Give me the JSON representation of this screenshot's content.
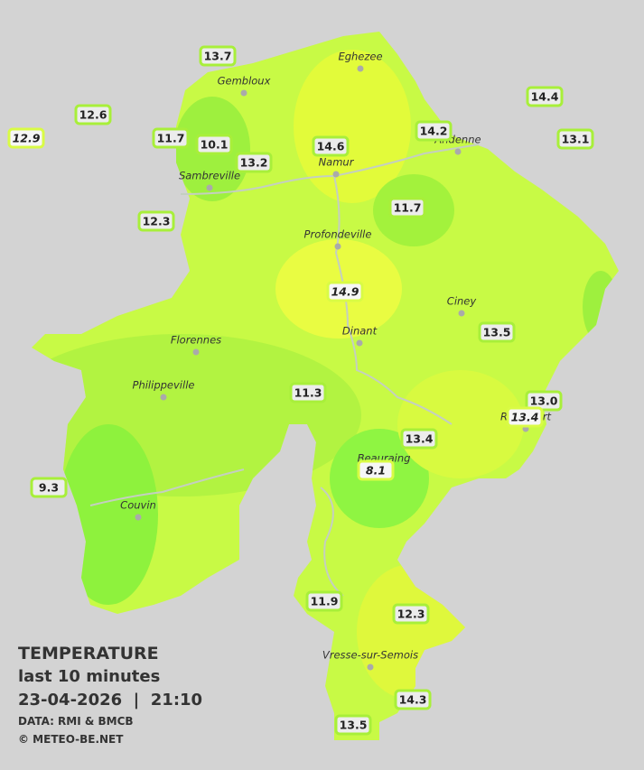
{
  "header": {
    "title": "TEMPERATURE",
    "subtitle": "last 10 minutes",
    "datetime": "23-04-2026  |  21:10",
    "source": "DATA: RMI & BMCB",
    "credit": "© METEO-BE.NET"
  },
  "cities": [
    {
      "name": "Eghezee"
    },
    {
      "name": "Gembloux"
    },
    {
      "name": "Andenne"
    },
    {
      "name": "Namur"
    },
    {
      "name": "Sambreville"
    },
    {
      "name": "Profondeville"
    },
    {
      "name": "Ciney"
    },
    {
      "name": "Dinant"
    },
    {
      "name": "Florennes"
    },
    {
      "name": "Philippeville"
    },
    {
      "name": "Beauraing"
    },
    {
      "name": "Rochefort"
    },
    {
      "name": "Couvin"
    },
    {
      "name": "Vresse-sur-Semois"
    }
  ],
  "stations": [
    {
      "label": "13.7"
    },
    {
      "label": "12.6"
    },
    {
      "label": "12.9"
    },
    {
      "label": "11.7"
    },
    {
      "label": "10.1"
    },
    {
      "label": "13.2"
    },
    {
      "label": "14.6"
    },
    {
      "label": "14.2"
    },
    {
      "label": "14.4"
    },
    {
      "label": "13.1"
    },
    {
      "label": "12.3"
    },
    {
      "label": "11.7"
    },
    {
      "label": "14.9"
    },
    {
      "label": "13.5"
    },
    {
      "label": "11.3"
    },
    {
      "label": "13.0"
    },
    {
      "label": "13.4"
    },
    {
      "label": "13.4"
    },
    {
      "label": "8.1"
    },
    {
      "label": "9.3"
    },
    {
      "label": "11.9"
    },
    {
      "label": "12.3"
    },
    {
      "label": "14.3"
    },
    {
      "label": "13.5"
    }
  ]
}
